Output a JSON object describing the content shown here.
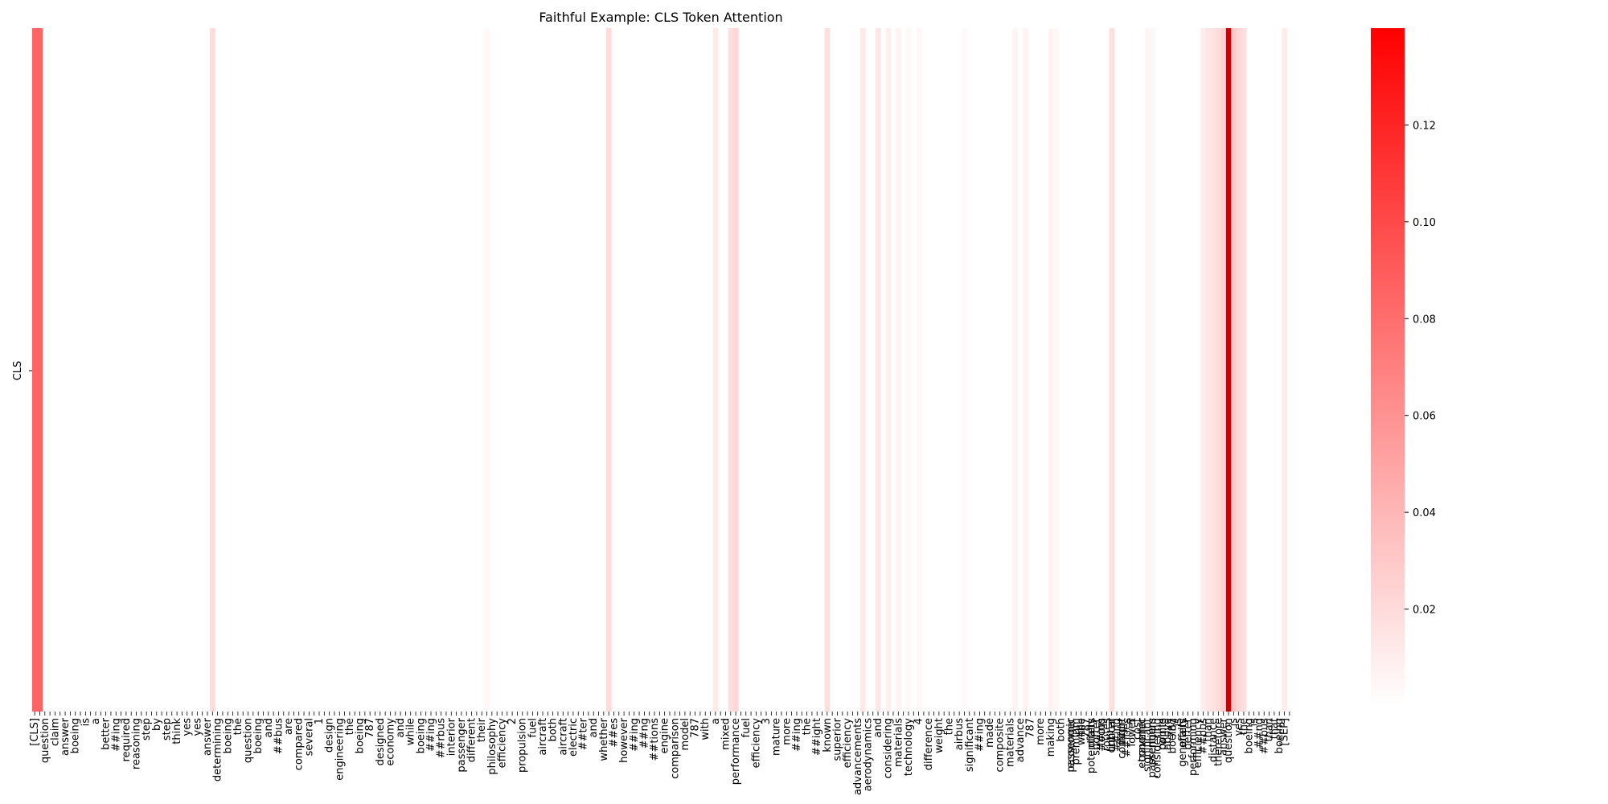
{
  "chart_data": {
    "type": "heatmap",
    "title": "Faithful Example: CLS Token Attention",
    "ylabel": "CLS",
    "xlabel": "",
    "colormap": [
      "#ffffff",
      "#ff0000"
    ],
    "colorbar": {
      "vmin": 0.0,
      "vmax": 0.14,
      "ticks": [
        "0.02",
        "0.04",
        "0.06",
        "0.08",
        "0.10",
        "0.12"
      ]
    },
    "n_tokens": 228,
    "tokens": [
      [
        0,
        "[CLS]"
      ],
      [
        2,
        "question"
      ],
      [
        4,
        "claim"
      ],
      [
        6,
        "answer"
      ],
      [
        8,
        "boeing"
      ],
      [
        10,
        "is"
      ],
      [
        12,
        "a"
      ],
      [
        14,
        "better"
      ],
      [
        16,
        "##ing"
      ],
      [
        18,
        "required"
      ],
      [
        20,
        "reasoning"
      ],
      [
        22,
        "step"
      ],
      [
        24,
        "by"
      ],
      [
        26,
        "step"
      ],
      [
        28,
        "think"
      ],
      [
        30,
        "yes"
      ],
      [
        32,
        "yes"
      ],
      [
        34,
        "answer"
      ],
      [
        36,
        "determining"
      ],
      [
        38,
        "boeing"
      ],
      [
        40,
        "the"
      ],
      [
        42,
        "question"
      ],
      [
        44,
        "boeing"
      ],
      [
        46,
        "and"
      ],
      [
        48,
        "##bus"
      ],
      [
        50,
        "are"
      ],
      [
        52,
        "compared"
      ],
      [
        54,
        "several"
      ],
      [
        56,
        "1"
      ],
      [
        58,
        "design"
      ],
      [
        60,
        "engineering"
      ],
      [
        62,
        "the"
      ],
      [
        64,
        "boeing"
      ],
      [
        66,
        "787"
      ],
      [
        68,
        "designed"
      ],
      [
        70,
        "economy"
      ],
      [
        72,
        "and"
      ],
      [
        74,
        "while"
      ],
      [
        76,
        "boeing"
      ],
      [
        78,
        "##ing"
      ],
      [
        80,
        "##rbus"
      ],
      [
        82,
        "interior"
      ],
      [
        84,
        "passenger"
      ],
      [
        86,
        "different"
      ],
      [
        88,
        "their"
      ],
      [
        90,
        "philosophy"
      ],
      [
        92,
        "efficiency"
      ],
      [
        94,
        "2"
      ],
      [
        96,
        "propulsion"
      ],
      [
        98,
        "fuel"
      ],
      [
        100,
        "aircraft"
      ],
      [
        102,
        "both"
      ],
      [
        104,
        "aircraft"
      ],
      [
        106,
        "electric"
      ],
      [
        108,
        "##ter"
      ],
      [
        110,
        "and"
      ],
      [
        112,
        "whether"
      ],
      [
        114,
        "##es"
      ],
      [
        116,
        "however"
      ],
      [
        118,
        "##ing"
      ],
      [
        120,
        "##ng"
      ],
      [
        122,
        "##tions"
      ],
      [
        124,
        "engine"
      ],
      [
        126,
        "comparison"
      ],
      [
        128,
        "model"
      ],
      [
        130,
        "787"
      ],
      [
        132,
        "with"
      ],
      [
        134,
        "a"
      ],
      [
        136,
        "mixed"
      ],
      [
        138,
        "performance"
      ],
      [
        140,
        "fuel"
      ],
      [
        142,
        "efficiency"
      ],
      [
        144,
        "3"
      ],
      [
        146,
        "mature"
      ],
      [
        148,
        "more"
      ],
      [
        150,
        "##ing"
      ],
      [
        152,
        "the"
      ],
      [
        154,
        "##ight"
      ],
      [
        156,
        "known"
      ],
      [
        158,
        "superior"
      ],
      [
        160,
        "efficiency"
      ],
      [
        162,
        "advancements"
      ],
      [
        164,
        "aerodynamics"
      ],
      [
        166,
        "and"
      ],
      [
        168,
        "considering"
      ],
      [
        170,
        "materials"
      ],
      [
        172,
        "technology"
      ],
      [
        174,
        "4"
      ],
      [
        176,
        "difference"
      ],
      [
        178,
        "weight"
      ],
      [
        180,
        "the"
      ],
      [
        182,
        "airbus"
      ],
      [
        184,
        "significant"
      ],
      [
        186,
        "##ing"
      ],
      [
        188,
        "made"
      ],
      [
        190,
        "composite"
      ],
      [
        192,
        "materials"
      ],
      [
        194,
        "advance"
      ],
      [
        196,
        "787"
      ],
      [
        198,
        "more"
      ],
      [
        200,
        "making"
      ],
      [
        202,
        "both"
      ],
      [
        204,
        "passenger"
      ],
      [
        206,
        "the"
      ],
      [
        208,
        "potentially"
      ],
      [
        210,
        "##ing"
      ],
      [
        212,
        "lighter"
      ],
      [
        214,
        "comfort"
      ],
      [
        216,
        "5"
      ],
      [
        218,
        "economic"
      ],
      [
        220,
        "premium"
      ],
      [
        222,
        "while"
      ],
      [
        224,
        "787"
      ],
      [
        226,
        "offers"
      ]
    ],
    "tokens_right": [
      "economic",
      "premium",
      "while",
      "787",
      "offers",
      "shorter",
      "focus",
      "routes",
      "critical",
      "##ing",
      "flight",
      "##ities",
      "lower",
      "cost",
      "traveller",
      "significant",
      "passengers",
      "considering",
      "points",
      "above",
      "boeing",
      "is",
      "generally",
      "better",
      "performing",
      "efficiency",
      "##bus",
      "than",
      "distance",
      "therefore",
      "answer",
      "question",
      "is",
      "yes",
      "the",
      "boeing",
      "is",
      "##ng",
      "##bus",
      "than",
      "that",
      "boeing",
      "[SEP]"
    ],
    "values": [
      [
        0,
        0.085
      ],
      [
        1,
        0.085
      ],
      [
        35,
        0.02
      ],
      [
        89,
        0.004
      ],
      [
        113,
        0.02
      ],
      [
        134,
        0.012
      ],
      [
        137,
        0.018
      ],
      [
        138,
        0.022
      ],
      [
        156,
        0.018
      ],
      [
        163,
        0.012
      ],
      [
        166,
        0.014
      ],
      [
        168,
        0.008
      ],
      [
        170,
        0.006
      ],
      [
        172,
        0.004
      ],
      [
        174,
        0.004
      ],
      [
        183,
        0.003
      ],
      [
        193,
        0.006
      ],
      [
        195,
        0.006
      ],
      [
        200,
        0.006
      ],
      [
        201,
        0.004
      ],
      [
        212,
        0.018
      ],
      [
        219,
        0.006
      ],
      [
        220,
        0.004
      ],
      [
        230,
        0.01
      ],
      [
        231,
        0.014
      ],
      [
        232,
        0.016
      ],
      [
        233,
        0.02
      ],
      [
        234,
        0.025
      ],
      [
        235,
        0.14
      ],
      [
        236,
        0.03
      ],
      [
        237,
        0.022
      ],
      [
        238,
        0.018
      ],
      [
        246,
        0.01
      ]
    ]
  }
}
